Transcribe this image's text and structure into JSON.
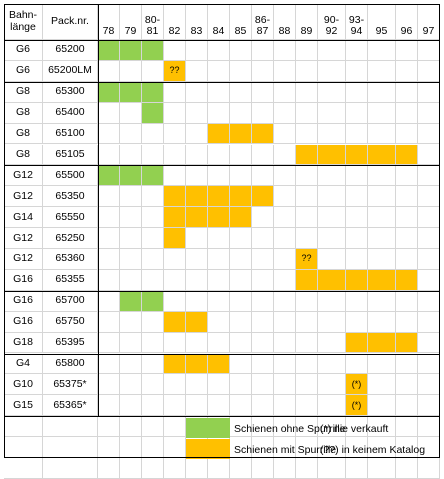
{
  "header": {
    "bahnlaenge": [
      "Bahn-",
      "länge"
    ],
    "packnr": "Pack.nr.",
    "years": [
      [
        "78"
      ],
      [
        "79"
      ],
      [
        "80-",
        "81"
      ],
      [
        "82"
      ],
      [
        "83"
      ],
      [
        "84"
      ],
      [
        "85"
      ],
      [
        "86-",
        "87"
      ],
      [
        "88"
      ],
      [
        "89"
      ],
      [
        "90-",
        "92"
      ],
      [
        "93-",
        "94"
      ],
      [
        "95"
      ],
      [
        "96"
      ],
      [
        "97"
      ]
    ]
  },
  "rows": [
    {
      "laenge": "G6",
      "packnr": "65200",
      "green": [
        0,
        1,
        2
      ],
      "orange": [],
      "marks": {}
    },
    {
      "laenge": "G6",
      "packnr": "65200LM",
      "green": [],
      "orange": [
        3
      ],
      "marks": {
        "3": "??"
      }
    },
    {
      "laenge": "G8",
      "packnr": "65300",
      "green": [
        0,
        1,
        2
      ],
      "orange": [],
      "marks": {}
    },
    {
      "laenge": "G8",
      "packnr": "65400",
      "green": [
        2
      ],
      "orange": [],
      "marks": {}
    },
    {
      "laenge": "G8",
      "packnr": "65100",
      "green": [],
      "orange": [
        5,
        6,
        7
      ],
      "marks": {}
    },
    {
      "laenge": "G8",
      "packnr": "65105",
      "green": [],
      "orange": [
        9,
        10,
        11,
        12,
        13
      ],
      "marks": {}
    },
    {
      "laenge": "G12",
      "packnr": "65500",
      "green": [
        0,
        1,
        2
      ],
      "orange": [],
      "marks": {}
    },
    {
      "laenge": "G12",
      "packnr": "65350",
      "green": [],
      "orange": [
        3,
        4,
        5,
        6,
        7
      ],
      "marks": {}
    },
    {
      "laenge": "G14",
      "packnr": "65550",
      "green": [],
      "orange": [
        3,
        4,
        5,
        6
      ],
      "marks": {}
    },
    {
      "laenge": "G12",
      "packnr": "65250",
      "green": [],
      "orange": [
        3
      ],
      "marks": {}
    },
    {
      "laenge": "G12",
      "packnr": "65360",
      "green": [],
      "orange": [
        9
      ],
      "marks": {
        "9": "??"
      }
    },
    {
      "laenge": "G16",
      "packnr": "65355",
      "green": [],
      "orange": [
        9,
        10,
        11,
        12,
        13
      ],
      "marks": {}
    },
    {
      "laenge": "G16",
      "packnr": "65700",
      "green": [
        1,
        2
      ],
      "orange": [],
      "marks": {}
    },
    {
      "laenge": "G16",
      "packnr": "65750",
      "green": [],
      "orange": [
        3,
        4
      ],
      "marks": {}
    },
    {
      "laenge": "G18",
      "packnr": "65395",
      "green": [],
      "orange": [
        11,
        12,
        13
      ],
      "marks": {}
    },
    {
      "laenge": "G4",
      "packnr": "65800",
      "green": [],
      "orange": [
        3,
        4,
        5
      ],
      "marks": {}
    },
    {
      "laenge": "G10",
      "packnr": "65375*",
      "green": [],
      "orange": [
        11
      ],
      "marks": {
        "11": "(*)"
      }
    },
    {
      "laenge": "G15",
      "packnr": "65365*",
      "green": [],
      "orange": [
        11
      ],
      "marks": {
        "11": "(*)"
      }
    },
    {
      "laenge": "",
      "packnr": "",
      "green": [],
      "orange": [],
      "marks": {}
    },
    {
      "laenge": "",
      "packnr": "",
      "green": [],
      "orange": [],
      "marks": {}
    },
    {
      "laenge": "",
      "packnr": "",
      "green": [],
      "orange": [],
      "marks": {}
    }
  ],
  "legend": {
    "green_label": "Schienen ohne Spurrille",
    "orange_label": "Schienen mit Spurrille",
    "note1": "(*) nie verkauft",
    "note2": "(??) in keinem Katalog",
    "green_color": "#92d050",
    "orange_color": "#ffc000"
  }
}
